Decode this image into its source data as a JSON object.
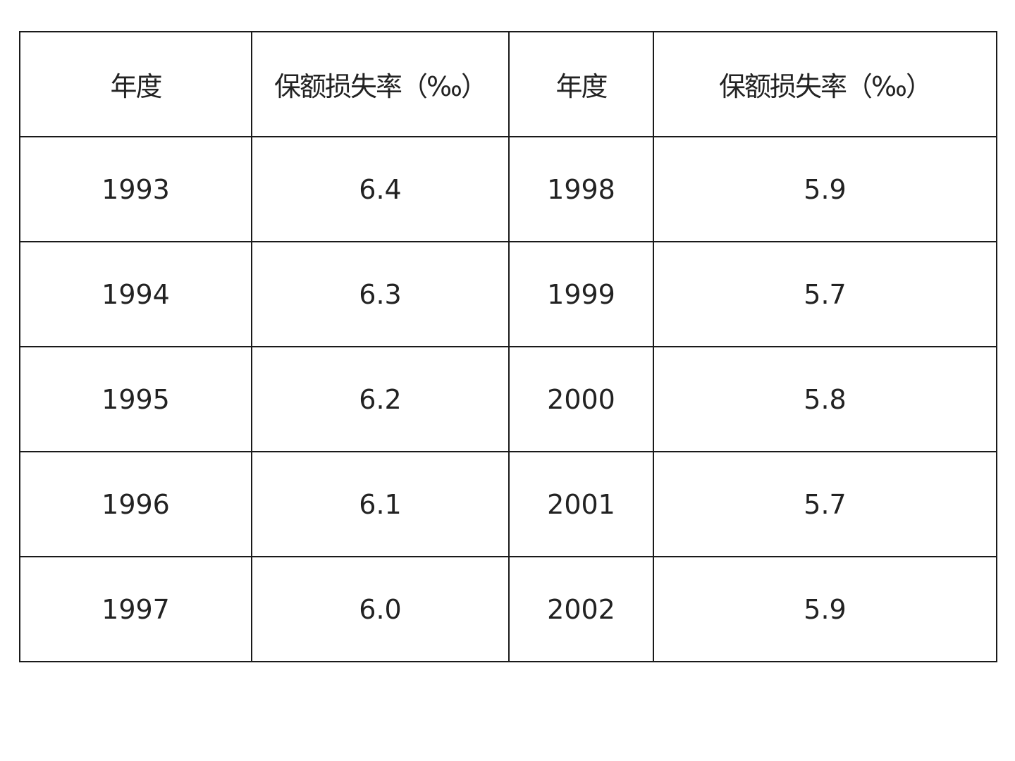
{
  "table": {
    "header": [
      "年度",
      "保额损失率（‰）",
      "年度",
      "保额损失率（‰）"
    ],
    "rows": [
      [
        "1993",
        "6.4",
        "1998",
        "5.9"
      ],
      [
        "1994",
        "6.3",
        "1999",
        "5.7"
      ],
      [
        "1995",
        "6.2",
        "2000",
        "5.8"
      ],
      [
        "1996",
        "6.1",
        "2001",
        "5.7"
      ],
      [
        "1997",
        "6.0",
        "2002",
        "5.9"
      ]
    ]
  }
}
